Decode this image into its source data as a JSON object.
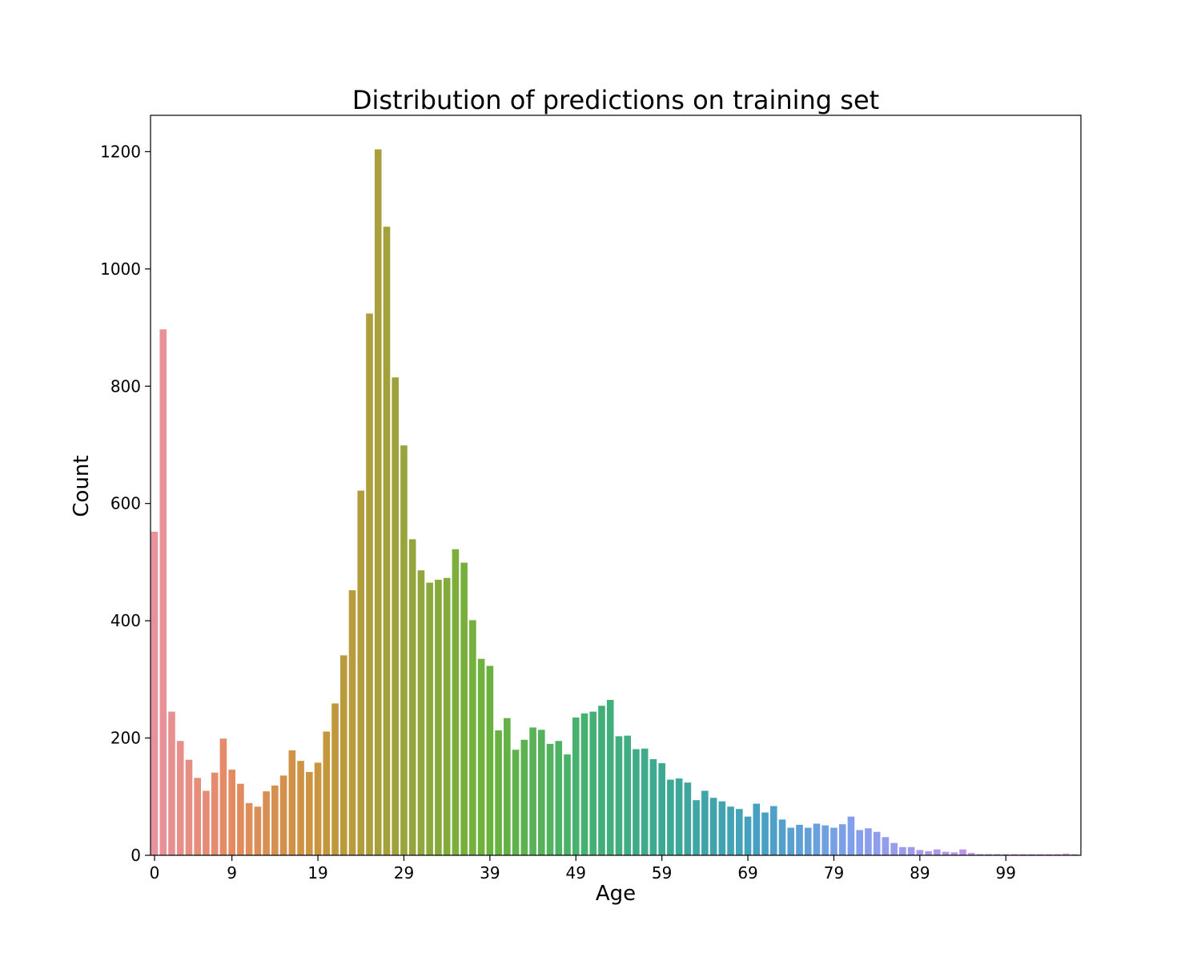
{
  "chart_data": {
    "type": "bar",
    "title": "Distribution of predictions on training set",
    "xlabel": "Age",
    "ylabel": "Count",
    "ylim": [
      0,
      1262
    ],
    "grid": false,
    "legend": "none",
    "colors": {
      "start": "#e8929e",
      "end": "#e29ae3"
    },
    "x_ticks": [
      0,
      9,
      19,
      29,
      39,
      49,
      59,
      69,
      79,
      89,
      99
    ],
    "y_ticks": [
      0,
      200,
      400,
      600,
      800,
      1000,
      1200
    ],
    "categories": [
      0,
      1,
      2,
      3,
      4,
      5,
      6,
      7,
      8,
      9,
      10,
      11,
      12,
      13,
      14,
      15,
      16,
      17,
      18,
      19,
      20,
      21,
      22,
      23,
      24,
      25,
      26,
      27,
      28,
      29,
      30,
      31,
      32,
      33,
      34,
      35,
      36,
      37,
      38,
      39,
      40,
      41,
      42,
      43,
      44,
      45,
      46,
      47,
      48,
      49,
      50,
      51,
      52,
      53,
      54,
      55,
      56,
      57,
      58,
      59,
      60,
      61,
      62,
      63,
      64,
      65,
      66,
      67,
      68,
      69,
      70,
      71,
      72,
      73,
      74,
      75,
      76,
      77,
      78,
      79,
      80,
      81,
      82,
      83,
      84,
      85,
      86,
      87,
      88,
      89,
      90,
      91,
      92,
      93,
      94,
      95,
      96,
      97,
      98,
      99,
      100,
      101,
      102,
      103,
      104,
      105,
      106,
      107
    ],
    "values": [
      552,
      897,
      245,
      195,
      163,
      132,
      110,
      141,
      199,
      146,
      122,
      89,
      83,
      109,
      119,
      136,
      179,
      161,
      142,
      158,
      211,
      259,
      341,
      452,
      622,
      924,
      1204,
      1072,
      815,
      699,
      539,
      486,
      465,
      470,
      473,
      522,
      499,
      401,
      335,
      323,
      213,
      234,
      180,
      197,
      218,
      214,
      190,
      195,
      172,
      235,
      242,
      245,
      255,
      265,
      203,
      204,
      181,
      182,
      164,
      157,
      129,
      131,
      124,
      94,
      110,
      98,
      92,
      83,
      79,
      66,
      88,
      73,
      84,
      61,
      47,
      52,
      47,
      54,
      51,
      47,
      53,
      66,
      43,
      46,
      40,
      31,
      21,
      14,
      14,
      9,
      7,
      10,
      6,
      5,
      10,
      4,
      2,
      2,
      2,
      2,
      2,
      2,
      2,
      2,
      2,
      2,
      3,
      2
    ]
  }
}
